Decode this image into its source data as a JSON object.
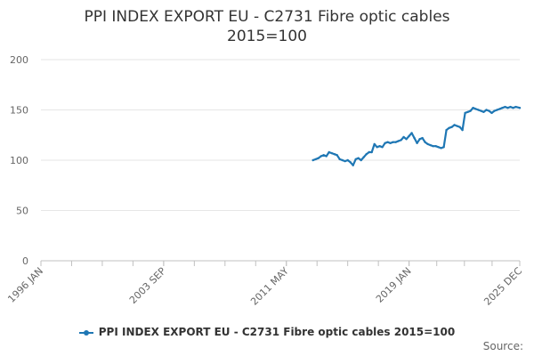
{
  "chart_data": {
    "type": "line",
    "title_line1": "PPI INDEX EXPORT EU - C2731 Fibre optic cables",
    "title_line2": "2015=100",
    "ylim": [
      0,
      200
    ],
    "y_ticks": [
      "0",
      "50",
      "100",
      "150",
      "200"
    ],
    "x_ticks": [
      "1996 JAN",
      "2003 SEP",
      "2011 MAY",
      "2019 JAN",
      "2025 DEC"
    ],
    "xlim": [
      "1996-01",
      "2025-12"
    ],
    "grid": "horizontal",
    "legend_position": "bottom",
    "color": "#1f77b4",
    "series": [
      {
        "name": "PPI INDEX EXPORT EU - C2731 Fibre optic cables 2015=100",
        "points": [
          [
            "2013-01",
            100
          ],
          [
            "2013-03",
            101
          ],
          [
            "2013-05",
            102
          ],
          [
            "2013-07",
            104
          ],
          [
            "2013-09",
            105
          ],
          [
            "2013-11",
            104
          ],
          [
            "2014-01",
            108
          ],
          [
            "2014-03",
            107
          ],
          [
            "2014-05",
            106
          ],
          [
            "2014-07",
            105
          ],
          [
            "2014-09",
            101
          ],
          [
            "2014-11",
            100
          ],
          [
            "2015-01",
            99
          ],
          [
            "2015-03",
            100
          ],
          [
            "2015-05",
            98
          ],
          [
            "2015-07",
            95
          ],
          [
            "2015-09",
            101
          ],
          [
            "2015-11",
            102
          ],
          [
            "2016-01",
            100
          ],
          [
            "2016-03",
            103
          ],
          [
            "2016-05",
            106
          ],
          [
            "2016-07",
            108
          ],
          [
            "2016-09",
            108
          ],
          [
            "2016-11",
            116
          ],
          [
            "2017-01",
            113
          ],
          [
            "2017-03",
            114
          ],
          [
            "2017-05",
            113
          ],
          [
            "2017-07",
            117
          ],
          [
            "2017-09",
            118
          ],
          [
            "2017-11",
            117
          ],
          [
            "2018-01",
            118
          ],
          [
            "2018-03",
            118
          ],
          [
            "2018-05",
            119
          ],
          [
            "2018-07",
            120
          ],
          [
            "2018-09",
            123
          ],
          [
            "2018-11",
            121
          ],
          [
            "2019-01",
            124
          ],
          [
            "2019-03",
            127
          ],
          [
            "2019-05",
            122
          ],
          [
            "2019-07",
            117
          ],
          [
            "2019-09",
            121
          ],
          [
            "2019-11",
            122
          ],
          [
            "2020-01",
            118
          ],
          [
            "2020-03",
            116
          ],
          [
            "2020-05",
            115
          ],
          [
            "2020-07",
            114
          ],
          [
            "2020-09",
            114
          ],
          [
            "2020-11",
            113
          ],
          [
            "2021-01",
            112
          ],
          [
            "2021-03",
            113
          ],
          [
            "2021-05",
            130
          ],
          [
            "2021-07",
            132
          ],
          [
            "2021-09",
            133
          ],
          [
            "2021-11",
            135
          ],
          [
            "2022-01",
            134
          ],
          [
            "2022-03",
            133
          ],
          [
            "2022-05",
            130
          ],
          [
            "2022-07",
            147
          ],
          [
            "2022-09",
            148
          ],
          [
            "2022-11",
            149
          ],
          [
            "2023-01",
            152
          ],
          [
            "2023-03",
            151
          ],
          [
            "2023-05",
            150
          ],
          [
            "2023-07",
            149
          ],
          [
            "2023-09",
            148
          ],
          [
            "2023-11",
            150
          ],
          [
            "2024-01",
            149
          ],
          [
            "2024-03",
            147
          ],
          [
            "2024-05",
            149
          ],
          [
            "2024-07",
            150
          ],
          [
            "2024-09",
            151
          ],
          [
            "2024-11",
            152
          ],
          [
            "2025-01",
            153
          ],
          [
            "2025-03",
            152
          ],
          [
            "2025-05",
            153
          ],
          [
            "2025-07",
            152
          ],
          [
            "2025-09",
            153
          ],
          [
            "2025-12",
            152
          ]
        ]
      }
    ]
  },
  "footer": {
    "source_label": "Source:"
  }
}
